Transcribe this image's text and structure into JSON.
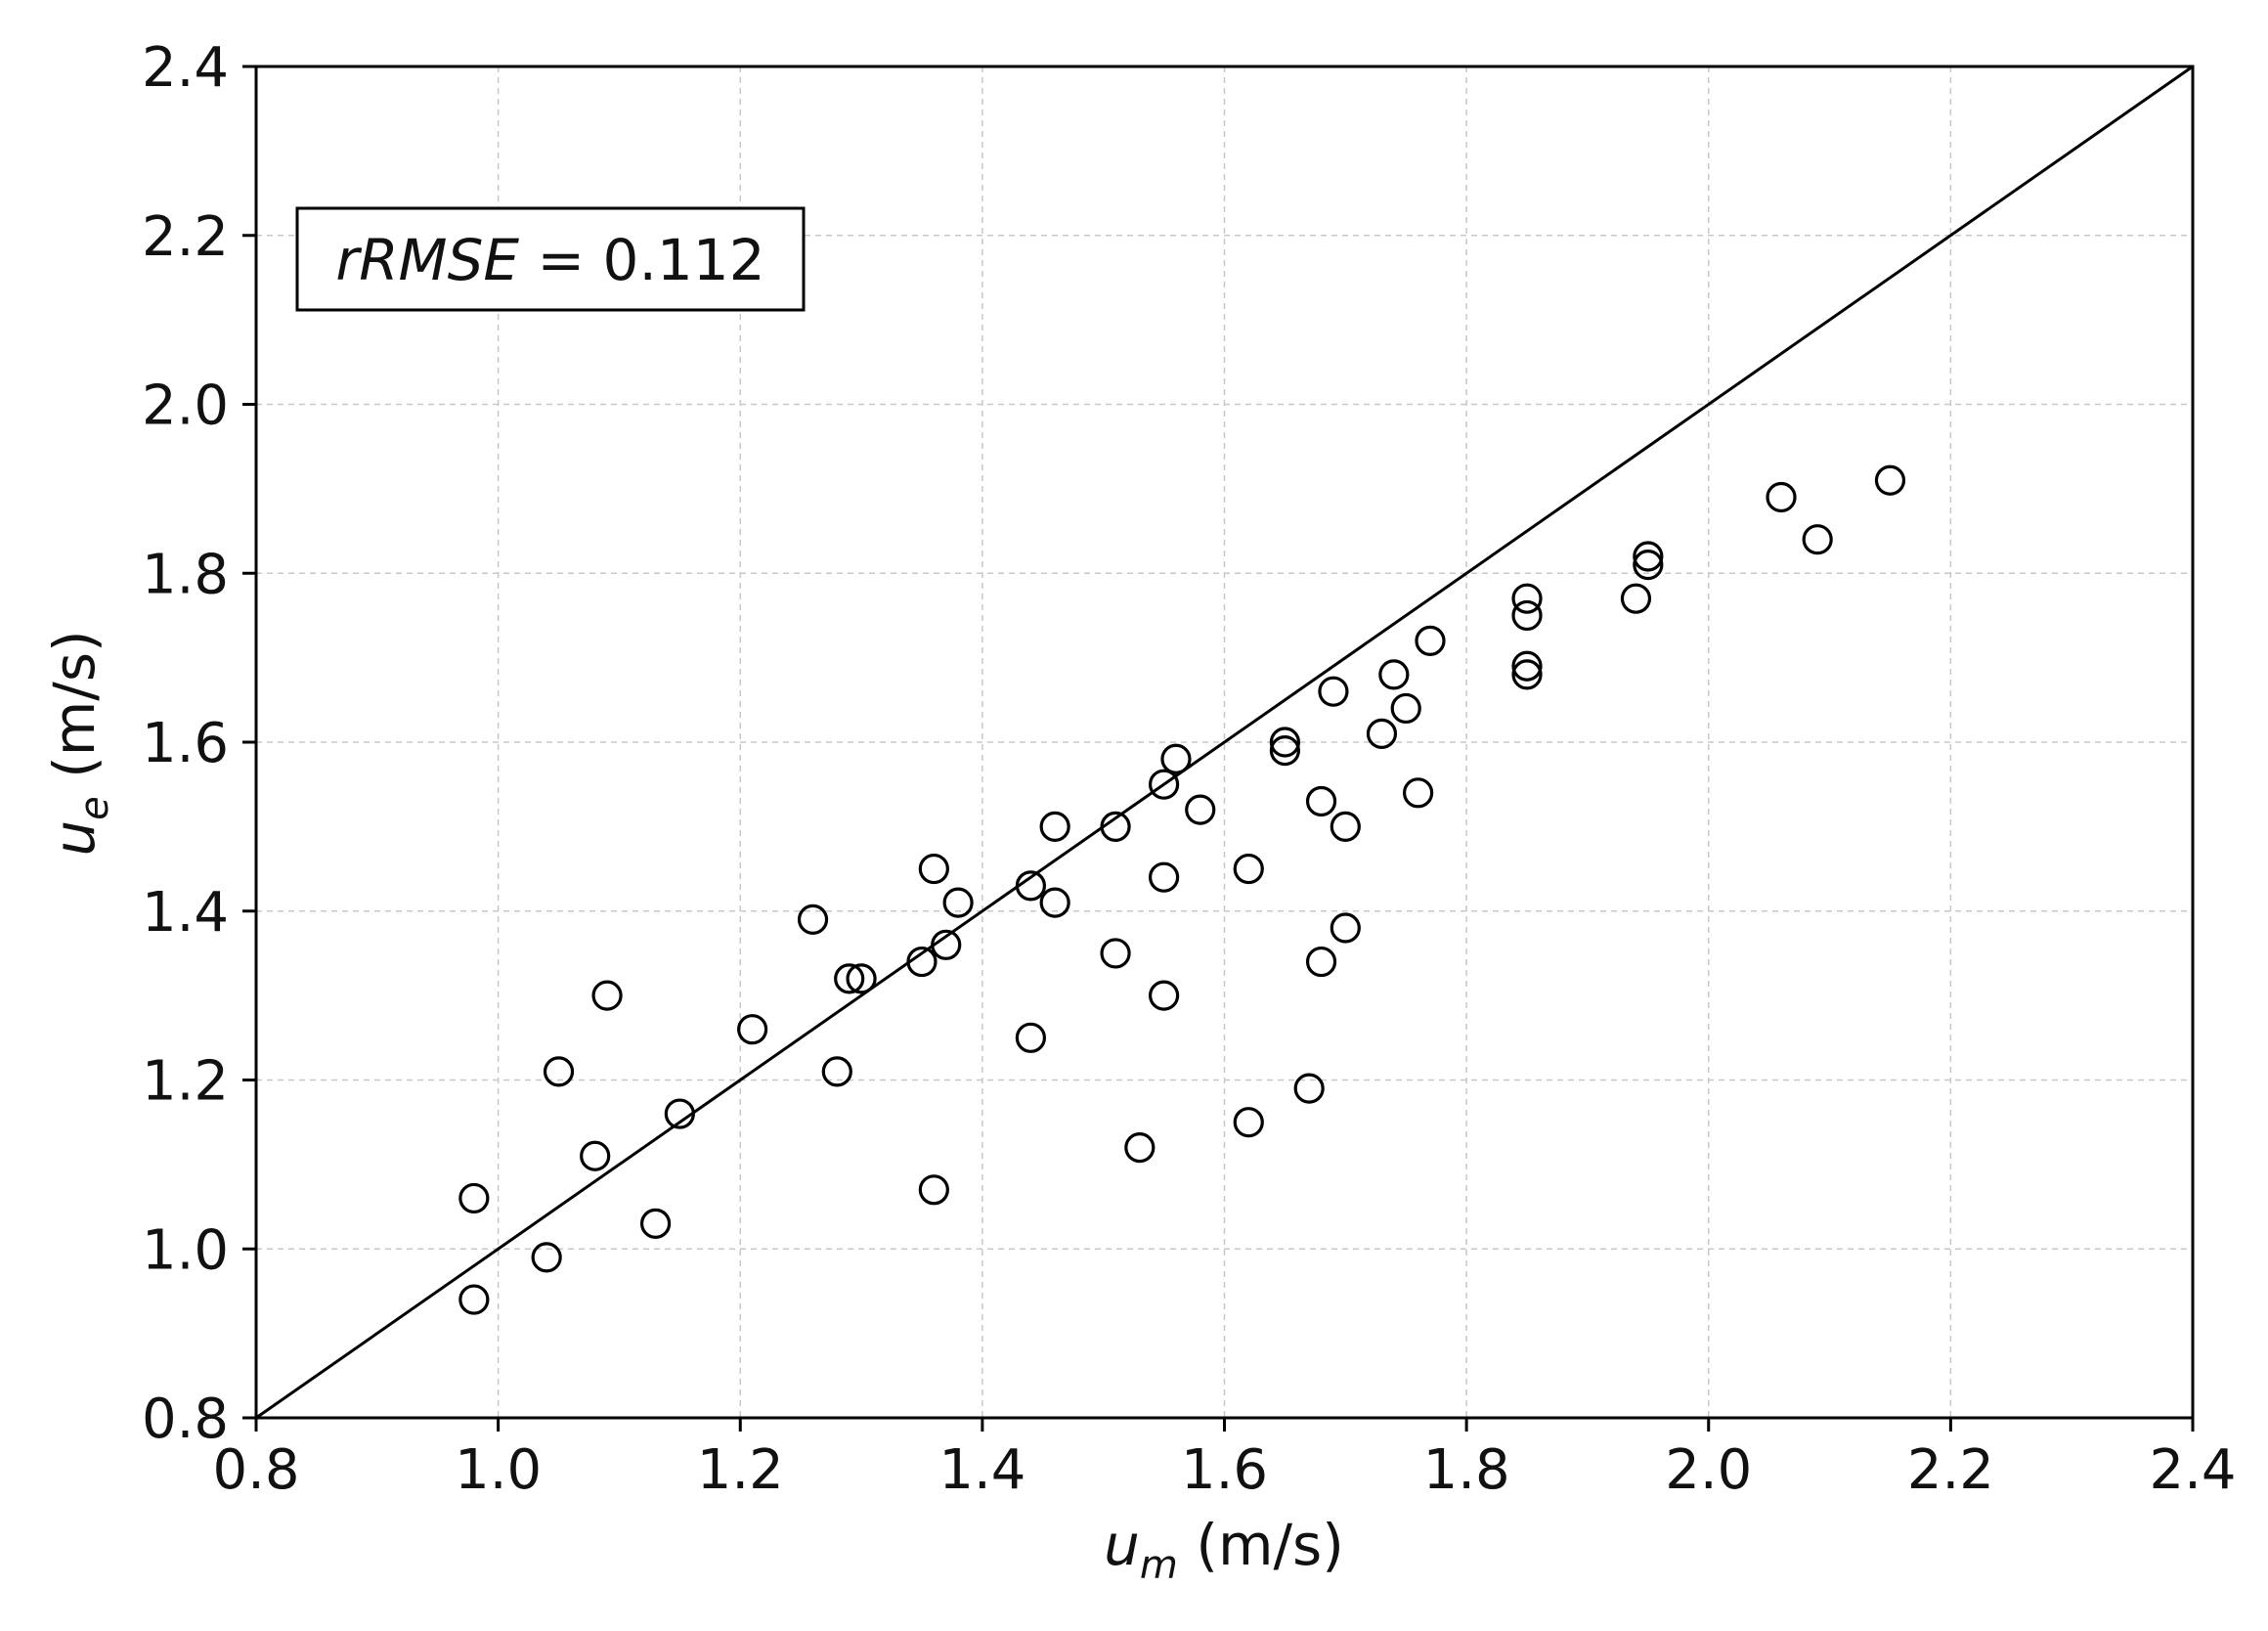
{
  "chart_data": {
    "type": "scatter",
    "xlabel_var": "u",
    "xlabel_sub": "m",
    "xlabel_unit": " (m/s)",
    "ylabel_var": "u",
    "ylabel_sub": "e",
    "ylabel_unit": " (m/s)",
    "xlim": [
      0.8,
      2.4
    ],
    "ylim": [
      0.8,
      2.4
    ],
    "xticks": [
      "0.8",
      "1.0",
      "1.2",
      "1.4",
      "1.6",
      "1.8",
      "2.0",
      "2.2",
      "2.4"
    ],
    "yticks": [
      "0.8",
      "1.0",
      "1.2",
      "1.4",
      "1.6",
      "1.8",
      "2.0",
      "2.2",
      "2.4"
    ],
    "grid": true,
    "reference_line": "y = x",
    "annotation": {
      "label": "rRMSE",
      "equals": " = ",
      "value": "0.112",
      "placement": "top-left"
    },
    "marker": "open-circle",
    "marker_color": "#000000",
    "points": [
      {
        "x": 0.98,
        "y": 1.06
      },
      {
        "x": 0.98,
        "y": 0.94
      },
      {
        "x": 1.04,
        "y": 0.99
      },
      {
        "x": 1.05,
        "y": 1.21
      },
      {
        "x": 1.08,
        "y": 1.11
      },
      {
        "x": 1.09,
        "y": 1.3
      },
      {
        "x": 1.13,
        "y": 1.03
      },
      {
        "x": 1.15,
        "y": 1.16
      },
      {
        "x": 1.21,
        "y": 1.26
      },
      {
        "x": 1.26,
        "y": 1.39
      },
      {
        "x": 1.28,
        "y": 1.21
      },
      {
        "x": 1.29,
        "y": 1.32
      },
      {
        "x": 1.3,
        "y": 1.32
      },
      {
        "x": 1.35,
        "y": 1.34
      },
      {
        "x": 1.36,
        "y": 1.45
      },
      {
        "x": 1.36,
        "y": 1.07
      },
      {
        "x": 1.37,
        "y": 1.36
      },
      {
        "x": 1.38,
        "y": 1.41
      },
      {
        "x": 1.44,
        "y": 1.43
      },
      {
        "x": 1.44,
        "y": 1.25
      },
      {
        "x": 1.46,
        "y": 1.5
      },
      {
        "x": 1.46,
        "y": 1.41
      },
      {
        "x": 1.51,
        "y": 1.5
      },
      {
        "x": 1.51,
        "y": 1.35
      },
      {
        "x": 1.53,
        "y": 1.12
      },
      {
        "x": 1.55,
        "y": 1.55
      },
      {
        "x": 1.55,
        "y": 1.44
      },
      {
        "x": 1.55,
        "y": 1.3
      },
      {
        "x": 1.56,
        "y": 1.58
      },
      {
        "x": 1.58,
        "y": 1.52
      },
      {
        "x": 1.62,
        "y": 1.45
      },
      {
        "x": 1.62,
        "y": 1.15
      },
      {
        "x": 1.65,
        "y": 1.59
      },
      {
        "x": 1.65,
        "y": 1.6
      },
      {
        "x": 1.67,
        "y": 1.19
      },
      {
        "x": 1.68,
        "y": 1.53
      },
      {
        "x": 1.68,
        "y": 1.34
      },
      {
        "x": 1.69,
        "y": 1.66
      },
      {
        "x": 1.7,
        "y": 1.5
      },
      {
        "x": 1.7,
        "y": 1.38
      },
      {
        "x": 1.73,
        "y": 1.61
      },
      {
        "x": 1.74,
        "y": 1.68
      },
      {
        "x": 1.75,
        "y": 1.64
      },
      {
        "x": 1.76,
        "y": 1.54
      },
      {
        "x": 1.77,
        "y": 1.72
      },
      {
        "x": 1.85,
        "y": 1.77
      },
      {
        "x": 1.85,
        "y": 1.75
      },
      {
        "x": 1.85,
        "y": 1.69
      },
      {
        "x": 1.85,
        "y": 1.68
      },
      {
        "x": 1.94,
        "y": 1.77
      },
      {
        "x": 1.95,
        "y": 1.81
      },
      {
        "x": 1.95,
        "y": 1.82
      },
      {
        "x": 2.06,
        "y": 1.89
      },
      {
        "x": 2.09,
        "y": 1.84
      },
      {
        "x": 2.15,
        "y": 1.91
      }
    ]
  }
}
